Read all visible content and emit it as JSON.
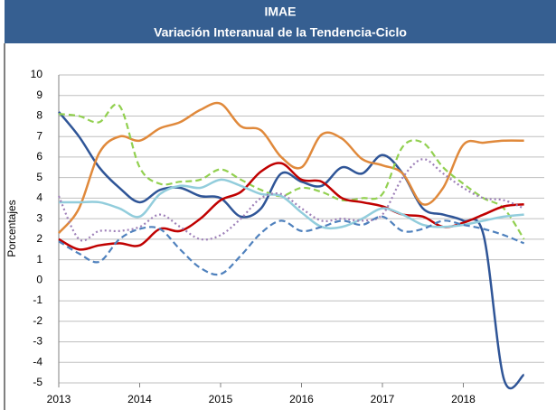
{
  "chart_data": {
    "type": "line",
    "title": "IMAE",
    "subtitle": "Variación Interanual de la Tendencia-Ciclo",
    "y_label": "Porcentajes",
    "x": [
      2013,
      2013.25,
      2013.5,
      2013.75,
      2014,
      2014.25,
      2014.5,
      2014.75,
      2015,
      2015.25,
      2015.5,
      2015.75,
      2016,
      2016.25,
      2016.5,
      2016.75,
      2017,
      2017.25,
      2017.5,
      2017.75,
      2018,
      2018.25,
      2018.5,
      2018.75
    ],
    "series": [
      {
        "color": "#2f5597",
        "dash": "solid",
        "values": [
          8.2,
          7.0,
          5.5,
          4.5,
          3.8,
          4.4,
          4.5,
          4.1,
          4.0,
          3.1,
          3.5,
          5.2,
          4.8,
          4.6,
          5.5,
          5.2,
          6.1,
          5.2,
          3.5,
          3.2,
          2.9,
          2.2,
          -4.8,
          -4.6
        ]
      },
      {
        "color": "#e0893b",
        "dash": "solid",
        "values": [
          2.3,
          3.5,
          6.2,
          7.0,
          6.8,
          7.4,
          7.7,
          8.3,
          8.6,
          7.5,
          7.3,
          6.0,
          5.5,
          7.1,
          6.9,
          5.9,
          5.6,
          5.2,
          3.7,
          4.5,
          6.6,
          6.7,
          6.8,
          6.8
        ]
      },
      {
        "color": "#92d050",
        "dash": "dashed",
        "values": [
          8.1,
          8.0,
          7.7,
          8.5,
          5.5,
          4.7,
          4.8,
          4.9,
          5.4,
          4.9,
          4.4,
          4.1,
          4.5,
          4.3,
          3.9,
          4.0,
          4.2,
          6.5,
          6.7,
          5.5,
          4.7,
          4.0,
          3.5,
          2.0
        ]
      },
      {
        "color": "#c00000",
        "dash": "solid",
        "values": [
          2.0,
          1.5,
          1.7,
          1.8,
          1.7,
          2.5,
          2.4,
          3.0,
          3.9,
          4.3,
          5.3,
          5.7,
          4.9,
          4.8,
          4.0,
          3.8,
          3.6,
          3.2,
          3.1,
          2.6,
          2.8,
          3.2,
          3.6,
          3.7
        ]
      },
      {
        "color": "#92cddc",
        "dash": "solid",
        "values": [
          3.8,
          3.8,
          3.8,
          3.5,
          3.1,
          4.2,
          4.6,
          4.5,
          4.9,
          4.6,
          4.2,
          4.1,
          3.3,
          2.6,
          2.6,
          3.0,
          3.5,
          3.2,
          2.7,
          2.6,
          2.7,
          2.9,
          3.1,
          3.2
        ]
      },
      {
        "color": "#9e80b8",
        "dash": "dotted",
        "values": [
          4.1,
          2.0,
          2.4,
          2.4,
          2.6,
          3.2,
          2.6,
          2.0,
          2.2,
          3.0,
          4.0,
          4.2,
          3.5,
          2.9,
          3.0,
          2.9,
          3.2,
          5.0,
          5.9,
          5.2,
          4.5,
          4.0,
          3.9,
          3.5
        ]
      },
      {
        "color": "#4f81bd",
        "dash": "dashed",
        "values": [
          1.9,
          1.3,
          0.9,
          2.0,
          2.5,
          2.5,
          1.5,
          0.6,
          0.3,
          1.2,
          2.3,
          2.9,
          2.4,
          2.6,
          2.9,
          2.7,
          3.1,
          2.4,
          2.5,
          2.9,
          2.7,
          2.5,
          2.2,
          1.8
        ]
      }
    ],
    "xlim": [
      2013,
      2019
    ],
    "xticks": [
      2013,
      2014,
      2015,
      2016,
      2017,
      2018
    ],
    "ylim": [
      -5,
      10
    ],
    "yticks": [
      -5,
      -4,
      -3,
      -2,
      -1,
      0,
      1,
      2,
      3,
      4,
      5,
      6,
      7,
      8,
      9,
      10
    ],
    "grid": true
  }
}
